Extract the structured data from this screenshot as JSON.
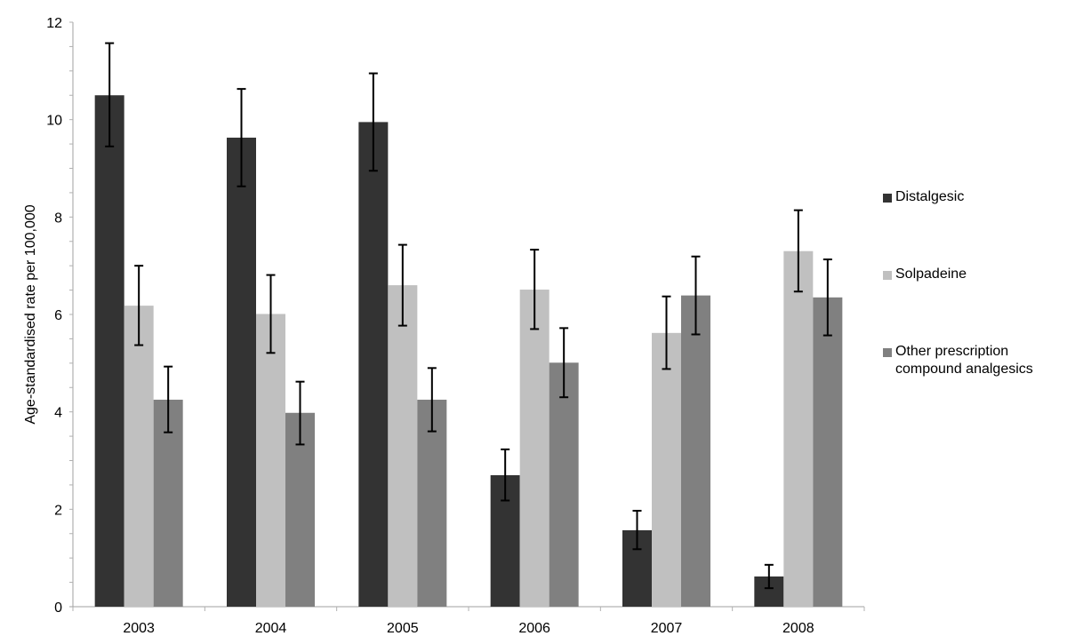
{
  "chart_data": {
    "type": "bar",
    "title": "",
    "xlabel": "",
    "ylabel": "Age-standardised rate per 100,000",
    "ylim": [
      0,
      12
    ],
    "yticks": [
      0,
      2,
      4,
      6,
      8,
      10,
      12
    ],
    "grid": false,
    "legend_position": "right",
    "categories": [
      "2003",
      "2004",
      "2005",
      "2006",
      "2007",
      "2008"
    ],
    "series": [
      {
        "name": "Distalgesic",
        "color": "#333333",
        "values": [
          10.5,
          9.63,
          9.95,
          2.7,
          1.57,
          0.62
        ],
        "error_low": [
          9.45,
          8.63,
          8.95,
          2.18,
          1.18,
          0.38
        ],
        "error_high": [
          11.57,
          10.63,
          10.95,
          3.23,
          1.97,
          0.86
        ]
      },
      {
        "name": "Solpadeine",
        "color": "#c0c0c0",
        "values": [
          6.18,
          6.01,
          6.6,
          6.51,
          5.62,
          7.3
        ],
        "error_low": [
          5.37,
          5.21,
          5.77,
          5.7,
          4.88,
          6.47
        ],
        "error_high": [
          7.0,
          6.81,
          7.43,
          7.33,
          6.37,
          8.14
        ]
      },
      {
        "name": "Other prescription compound analgesics",
        "color": "#808080",
        "values": [
          4.25,
          3.98,
          4.25,
          5.01,
          6.39,
          6.35
        ],
        "error_low": [
          3.58,
          3.33,
          3.6,
          4.3,
          5.59,
          5.57
        ],
        "error_high": [
          4.93,
          4.62,
          4.9,
          5.72,
          7.19,
          7.13
        ]
      }
    ]
  },
  "legend": {
    "items": [
      {
        "line1": "Distalgesic",
        "line2": ""
      },
      {
        "line1": "Solpadeine",
        "line2": ""
      },
      {
        "line1": "Other prescription",
        "line2": "compound analgesics"
      }
    ]
  }
}
